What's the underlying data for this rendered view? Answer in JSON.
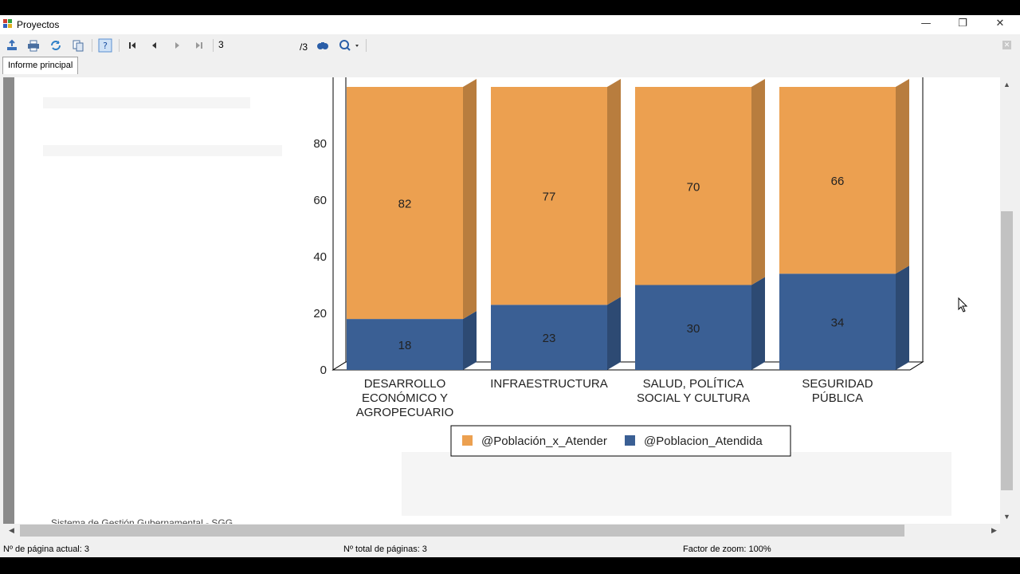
{
  "window": {
    "title": "Proyectos",
    "controls": {
      "minimize": "—",
      "restore": "❐",
      "close": "✕"
    }
  },
  "toolbar": {
    "current_page": "3",
    "total_pages_label": "/3",
    "icons": [
      "export-icon",
      "print-icon",
      "refresh-icon",
      "copy-icon",
      "help-icon",
      "first-page-icon",
      "prev-page-icon",
      "next-page-icon",
      "last-page-icon",
      "find-icon",
      "zoom-icon"
    ]
  },
  "tabs": [
    {
      "label": "Informe principal"
    }
  ],
  "report": {
    "footer_text": "Sistema de Gestión Gubernamental - SGG"
  },
  "chart_data": {
    "type": "bar",
    "stacked": true,
    "three_d": true,
    "categories": [
      [
        "DESARROLLO",
        "ECONÓMICO Y",
        "AGROPECUARIO"
      ],
      [
        "INFRAESTRUCTURA"
      ],
      [
        "SALUD, POLÍTICA",
        "SOCIAL Y CULTURA"
      ],
      [
        "SEGURIDAD",
        "PÚBLICA"
      ]
    ],
    "series": [
      {
        "name": "@Poblacion_Atendida",
        "color": "#3a5f94",
        "values": [
          18,
          23,
          30,
          34
        ]
      },
      {
        "name": "@Población_x_Atender",
        "color": "#eca050",
        "values": [
          82,
          77,
          70,
          66
        ]
      }
    ],
    "legend_order": [
      "@Población_x_Atender",
      "@Poblacion_Atendida"
    ],
    "y_ticks": [
      0,
      20,
      40,
      60,
      80
    ],
    "ylim": [
      0,
      100
    ],
    "legend": "bottom"
  },
  "status": {
    "current_page": "Nº de página actual: 3",
    "total_pages": "Nº total de páginas: 3",
    "zoom": "Factor de zoom: 100%"
  }
}
